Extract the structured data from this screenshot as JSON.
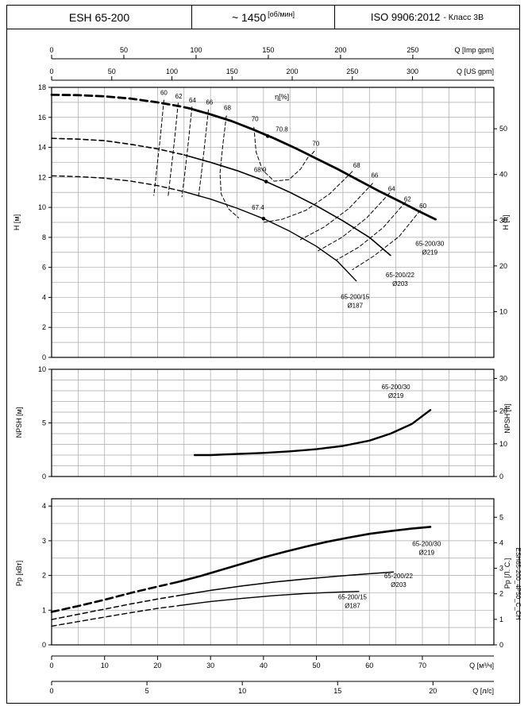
{
  "header": {
    "model": "ESH 65-200",
    "speed": "~ 1450",
    "speed_unit": "[об/мин]",
    "standard": "ISO 9906:2012",
    "standard_class": "- Класс 3В"
  },
  "side_code": "ESH65-200_4P50_C_CH",
  "colors": {
    "curve": "#000000",
    "grid": "#a8a8a8",
    "border": "#000000",
    "background": "#ffffff"
  },
  "flow_axes": {
    "top": [
      {
        "unit_label": "Q [Imp gpm]",
        "ticks": [
          0,
          50,
          100,
          150,
          200,
          250
        ],
        "m3h_per_unit": 0.27276
      },
      {
        "unit_label": "Q [US gpm]",
        "ticks": [
          0,
          50,
          100,
          150,
          200,
          250,
          300
        ],
        "m3h_per_unit": 0.22712
      }
    ],
    "bottom": [
      {
        "unit_label": "Q [м³/ч]",
        "ticks": [
          0,
          10,
          20,
          30,
          40,
          50,
          60,
          70
        ],
        "m3h_per_unit": 1
      },
      {
        "unit_label": "Q [л/с]",
        "ticks": [
          0,
          5,
          10,
          15,
          20
        ],
        "m3h_per_unit": 3.6
      }
    ]
  },
  "chart_data": [
    {
      "id": "head_flow",
      "type": "line",
      "xlabel": "Q [м³/ч]",
      "ylabel_left": "H [м]",
      "ylabel_right": "H [ft]",
      "xlim": [
        0,
        83.5
      ],
      "ylim": [
        0,
        18
      ],
      "yticks_left": [
        0,
        2,
        4,
        6,
        8,
        10,
        12,
        14,
        16,
        18
      ],
      "yticks_right_ft": [
        10,
        20,
        30,
        40,
        50
      ],
      "series": [
        {
          "name": "65-200/30",
          "diameter": "Ø219",
          "dash_until": 26,
          "width": 2.8,
          "label_at": [
            71.4,
            7.45
          ],
          "bep": {
            "value": "70.8",
            "point": [
              40.8,
              14.75
            ],
            "label_at": [
              42.3,
              15.05
            ]
          },
          "points": [
            [
              0,
              17.5
            ],
            [
              5,
              17.48
            ],
            [
              10,
              17.4
            ],
            [
              15,
              17.25
            ],
            [
              20,
              17.0
            ],
            [
              24,
              16.75
            ],
            [
              26,
              16.6
            ],
            [
              30,
              16.2
            ],
            [
              34,
              15.75
            ],
            [
              38,
              15.2
            ],
            [
              42,
              14.6
            ],
            [
              46,
              13.95
            ],
            [
              50,
              13.25
            ],
            [
              54,
              12.55
            ],
            [
              58,
              11.8
            ],
            [
              62,
              11.05
            ],
            [
              66,
              10.35
            ],
            [
              69,
              9.8
            ],
            [
              72.5,
              9.2
            ]
          ]
        },
        {
          "name": "65-200/22",
          "diameter": "Ø203",
          "dash_until": 25,
          "width": 1.6,
          "label_at": [
            65.8,
            5.35
          ],
          "bep": {
            "value": "68.9",
            "point": [
              40.5,
              11.72
            ],
            "label_at": [
              38.2,
              12.35
            ]
          },
          "points": [
            [
              0,
              14.6
            ],
            [
              5,
              14.55
            ],
            [
              10,
              14.45
            ],
            [
              15,
              14.2
            ],
            [
              20,
              13.9
            ],
            [
              25,
              13.5
            ],
            [
              30,
              13.0
            ],
            [
              35,
              12.45
            ],
            [
              40,
              11.8
            ],
            [
              45,
              11.0
            ],
            [
              50,
              10.1
            ],
            [
              55,
              9.1
            ],
            [
              60,
              8.0
            ],
            [
              64,
              6.8
            ]
          ]
        },
        {
          "name": "65-200/15",
          "diameter": "Ø187",
          "dash_until": 25,
          "width": 1.4,
          "label_at": [
            57.3,
            3.9
          ],
          "bep": {
            "value": "67.4",
            "point": [
              40.0,
              9.25
            ],
            "label_at": [
              37.8,
              9.85
            ]
          },
          "points": [
            [
              0,
              12.1
            ],
            [
              5,
              12.05
            ],
            [
              10,
              11.95
            ],
            [
              15,
              11.75
            ],
            [
              20,
              11.45
            ],
            [
              25,
              11.05
            ],
            [
              30,
              10.55
            ],
            [
              35,
              9.95
            ],
            [
              40,
              9.25
            ],
            [
              45,
              8.4
            ],
            [
              50,
              7.4
            ],
            [
              54,
              6.4
            ],
            [
              57.5,
              5.1
            ]
          ]
        }
      ],
      "efficiency": {
        "unit_label": "η[%]",
        "unit_label_at": [
          43.5,
          17.2
        ],
        "contours": [
          {
            "value": "60",
            "label_at": [
              21.2,
              17.5
            ],
            "points": [
              [
                21.2,
                17.15
              ],
              [
                20.5,
                14.6
              ],
              [
                19.8,
                12.4
              ],
              [
                19.3,
                10.8
              ]
            ]
          },
          {
            "value": "62",
            "label_at": [
              24.0,
              17.25
            ],
            "points": [
              [
                23.9,
                16.95
              ],
              [
                23.2,
                14.5
              ],
              [
                22.5,
                12.3
              ],
              [
                22.0,
                10.75
              ]
            ]
          },
          {
            "value": "64",
            "label_at": [
              26.6,
              17.0
            ],
            "points": [
              [
                26.5,
                16.7
              ],
              [
                25.8,
                14.3
              ],
              [
                25.1,
                12.1
              ],
              [
                24.6,
                10.7
              ]
            ]
          },
          {
            "value": "66",
            "label_at": [
              29.8,
              16.85
            ],
            "points": [
              [
                29.6,
                16.5
              ],
              [
                28.9,
                14.2
              ],
              [
                28.2,
                12.0
              ],
              [
                27.7,
                10.65
              ]
            ]
          },
          {
            "value": "68",
            "label_at": [
              33.2,
              16.5
            ],
            "points": [
              [
                33.0,
                16.1
              ],
              [
                32.3,
                14.1
              ],
              [
                31.8,
                12.3
              ],
              [
                32.0,
                10.9
              ],
              [
                33.4,
                9.9
              ],
              [
                35.3,
                9.3
              ]
            ]
          },
          {
            "value": "70",
            "label_at": [
              38.4,
              15.75
            ],
            "points": [
              [
                38.2,
                15.35
              ],
              [
                38.6,
                13.7
              ],
              [
                39.8,
                12.5
              ],
              [
                42.0,
                11.75
              ],
              [
                44.8,
                11.85
              ],
              [
                47.0,
                12.55
              ],
              [
                48.7,
                13.5
              ]
            ]
          },
          {
            "value": "70",
            "label_at": [
              49.9,
              14.1
            ],
            "points": [
              [
                49.6,
                13.75
              ],
              [
                48.9,
                13.45
              ]
            ]
          },
          {
            "value": "68",
            "label_at": [
              57.6,
              12.65
            ],
            "points": [
              [
                56.8,
                12.4
              ],
              [
                52.5,
                10.9
              ],
              [
                48.0,
                9.8
              ],
              [
                43.5,
                9.2
              ],
              [
                40.0,
                9.0
              ]
            ]
          },
          {
            "value": "66",
            "label_at": [
              61.0,
              12.0
            ],
            "points": [
              [
                60.6,
                11.6
              ],
              [
                56.2,
                9.95
              ],
              [
                51.5,
                8.7
              ],
              [
                47.0,
                7.85
              ]
            ]
          },
          {
            "value": "64",
            "label_at": [
              64.2,
              11.1
            ],
            "points": [
              [
                63.8,
                10.95
              ],
              [
                59.5,
                9.3
              ],
              [
                54.8,
                8.0
              ],
              [
                50.3,
                7.1
              ]
            ]
          },
          {
            "value": "62",
            "label_at": [
              67.2,
              10.4
            ],
            "points": [
              [
                66.8,
                10.35
              ],
              [
                62.6,
                8.65
              ],
              [
                58.0,
                7.35
              ],
              [
                53.8,
                6.5
              ]
            ]
          },
          {
            "value": "60",
            "label_at": [
              70.1,
              9.95
            ],
            "points": [
              [
                69.6,
                9.8
              ],
              [
                65.6,
                8.05
              ],
              [
                60.8,
                6.75
              ],
              [
                56.8,
                5.85
              ]
            ]
          }
        ]
      }
    },
    {
      "id": "npsh",
      "type": "line",
      "ylabel_left": "NPSH [м]",
      "ylabel_right": "NPSH [ft]",
      "ylim": [
        0,
        10
      ],
      "yticks_left": [
        0,
        5,
        10
      ],
      "yticks_right_ft": [
        0,
        10,
        20,
        30
      ],
      "series": [
        {
          "name": "65-200/30",
          "diameter": "Ø219",
          "width": 2.4,
          "label_at": [
            65.0,
            8.15
          ],
          "points": [
            [
              27,
              2.0
            ],
            [
              30,
              2.0
            ],
            [
              35,
              2.1
            ],
            [
              40,
              2.2
            ],
            [
              45,
              2.35
            ],
            [
              50,
              2.55
            ],
            [
              55,
              2.85
            ],
            [
              60,
              3.35
            ],
            [
              64,
              4.0
            ],
            [
              68,
              4.9
            ],
            [
              71.5,
              6.2
            ]
          ]
        }
      ]
    },
    {
      "id": "power",
      "type": "line",
      "ylabel_left": "Pp [кВт]",
      "ylabel_right": "Pp [Л. С.]",
      "ylim": [
        0,
        4.21
      ],
      "yticks_left": [
        0,
        1,
        2,
        3,
        4
      ],
      "yticks_right_hp": [
        0,
        1,
        2,
        3,
        4,
        5
      ],
      "series": [
        {
          "name": "65-200/30",
          "diameter": "Ø219",
          "dash_until": 24,
          "width": 2.6,
          "label_at": [
            70.8,
            2.85
          ],
          "points": [
            [
              0,
              0.95
            ],
            [
              5,
              1.12
            ],
            [
              10,
              1.3
            ],
            [
              15,
              1.5
            ],
            [
              20,
              1.68
            ],
            [
              24,
              1.82
            ],
            [
              28,
              1.98
            ],
            [
              32,
              2.16
            ],
            [
              36,
              2.34
            ],
            [
              40,
              2.52
            ],
            [
              44,
              2.68
            ],
            [
              48,
              2.83
            ],
            [
              52,
              2.97
            ],
            [
              56,
              3.09
            ],
            [
              60,
              3.2
            ],
            [
              64,
              3.28
            ],
            [
              68,
              3.35
            ],
            [
              71.5,
              3.4
            ]
          ]
        },
        {
          "name": "65-200/22",
          "diameter": "Ø203",
          "dash_until": 24,
          "width": 1.5,
          "label_at": [
            65.5,
            1.92
          ],
          "points": [
            [
              0,
              0.73
            ],
            [
              5,
              0.88
            ],
            [
              10,
              1.03
            ],
            [
              15,
              1.18
            ],
            [
              20,
              1.32
            ],
            [
              24,
              1.42
            ],
            [
              30,
              1.57
            ],
            [
              36,
              1.7
            ],
            [
              42,
              1.81
            ],
            [
              48,
              1.9
            ],
            [
              54,
              1.98
            ],
            [
              60,
              2.05
            ],
            [
              64.5,
              2.1
            ]
          ]
        },
        {
          "name": "65-200/15",
          "diameter": "Ø187",
          "dash_until": 24,
          "width": 1.4,
          "label_at": [
            56.8,
            1.32
          ],
          "points": [
            [
              0,
              0.54
            ],
            [
              5,
              0.67
            ],
            [
              10,
              0.8
            ],
            [
              15,
              0.93
            ],
            [
              20,
              1.05
            ],
            [
              24,
              1.13
            ],
            [
              30,
              1.25
            ],
            [
              36,
              1.34
            ],
            [
              42,
              1.42
            ],
            [
              48,
              1.48
            ],
            [
              54,
              1.52
            ],
            [
              58,
              1.54
            ]
          ]
        }
      ]
    }
  ]
}
